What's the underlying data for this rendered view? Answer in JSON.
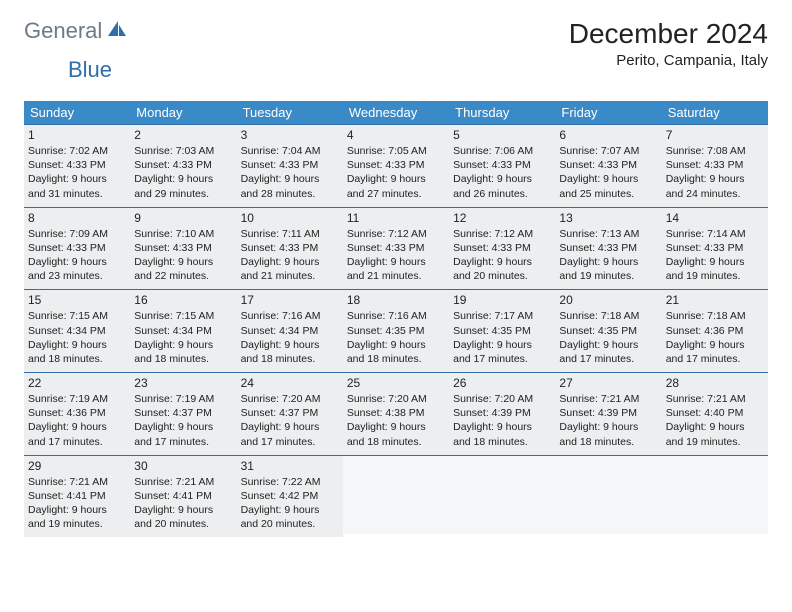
{
  "logo": {
    "text1": "General",
    "text2": "Blue"
  },
  "title": "December 2024",
  "location": "Perito, Campania, Italy",
  "colors": {
    "header_bg": "#3a8ac8",
    "header_text": "#ffffff",
    "border": "#2f6ea8",
    "cell_bg": "#eceeef",
    "empty_bg": "#f5f6f7",
    "logo_gray": "#6b7b8a",
    "logo_blue": "#2f6ea8"
  },
  "day_headers": [
    "Sunday",
    "Monday",
    "Tuesday",
    "Wednesday",
    "Thursday",
    "Friday",
    "Saturday"
  ],
  "weeks": [
    [
      {
        "num": "1",
        "sunrise": "Sunrise: 7:02 AM",
        "sunset": "Sunset: 4:33 PM",
        "dl1": "Daylight: 9 hours",
        "dl2": "and 31 minutes."
      },
      {
        "num": "2",
        "sunrise": "Sunrise: 7:03 AM",
        "sunset": "Sunset: 4:33 PM",
        "dl1": "Daylight: 9 hours",
        "dl2": "and 29 minutes."
      },
      {
        "num": "3",
        "sunrise": "Sunrise: 7:04 AM",
        "sunset": "Sunset: 4:33 PM",
        "dl1": "Daylight: 9 hours",
        "dl2": "and 28 minutes."
      },
      {
        "num": "4",
        "sunrise": "Sunrise: 7:05 AM",
        "sunset": "Sunset: 4:33 PM",
        "dl1": "Daylight: 9 hours",
        "dl2": "and 27 minutes."
      },
      {
        "num": "5",
        "sunrise": "Sunrise: 7:06 AM",
        "sunset": "Sunset: 4:33 PM",
        "dl1": "Daylight: 9 hours",
        "dl2": "and 26 minutes."
      },
      {
        "num": "6",
        "sunrise": "Sunrise: 7:07 AM",
        "sunset": "Sunset: 4:33 PM",
        "dl1": "Daylight: 9 hours",
        "dl2": "and 25 minutes."
      },
      {
        "num": "7",
        "sunrise": "Sunrise: 7:08 AM",
        "sunset": "Sunset: 4:33 PM",
        "dl1": "Daylight: 9 hours",
        "dl2": "and 24 minutes."
      }
    ],
    [
      {
        "num": "8",
        "sunrise": "Sunrise: 7:09 AM",
        "sunset": "Sunset: 4:33 PM",
        "dl1": "Daylight: 9 hours",
        "dl2": "and 23 minutes."
      },
      {
        "num": "9",
        "sunrise": "Sunrise: 7:10 AM",
        "sunset": "Sunset: 4:33 PM",
        "dl1": "Daylight: 9 hours",
        "dl2": "and 22 minutes."
      },
      {
        "num": "10",
        "sunrise": "Sunrise: 7:11 AM",
        "sunset": "Sunset: 4:33 PM",
        "dl1": "Daylight: 9 hours",
        "dl2": "and 21 minutes."
      },
      {
        "num": "11",
        "sunrise": "Sunrise: 7:12 AM",
        "sunset": "Sunset: 4:33 PM",
        "dl1": "Daylight: 9 hours",
        "dl2": "and 21 minutes."
      },
      {
        "num": "12",
        "sunrise": "Sunrise: 7:12 AM",
        "sunset": "Sunset: 4:33 PM",
        "dl1": "Daylight: 9 hours",
        "dl2": "and 20 minutes."
      },
      {
        "num": "13",
        "sunrise": "Sunrise: 7:13 AM",
        "sunset": "Sunset: 4:33 PM",
        "dl1": "Daylight: 9 hours",
        "dl2": "and 19 minutes."
      },
      {
        "num": "14",
        "sunrise": "Sunrise: 7:14 AM",
        "sunset": "Sunset: 4:33 PM",
        "dl1": "Daylight: 9 hours",
        "dl2": "and 19 minutes."
      }
    ],
    [
      {
        "num": "15",
        "sunrise": "Sunrise: 7:15 AM",
        "sunset": "Sunset: 4:34 PM",
        "dl1": "Daylight: 9 hours",
        "dl2": "and 18 minutes."
      },
      {
        "num": "16",
        "sunrise": "Sunrise: 7:15 AM",
        "sunset": "Sunset: 4:34 PM",
        "dl1": "Daylight: 9 hours",
        "dl2": "and 18 minutes."
      },
      {
        "num": "17",
        "sunrise": "Sunrise: 7:16 AM",
        "sunset": "Sunset: 4:34 PM",
        "dl1": "Daylight: 9 hours",
        "dl2": "and 18 minutes."
      },
      {
        "num": "18",
        "sunrise": "Sunrise: 7:16 AM",
        "sunset": "Sunset: 4:35 PM",
        "dl1": "Daylight: 9 hours",
        "dl2": "and 18 minutes."
      },
      {
        "num": "19",
        "sunrise": "Sunrise: 7:17 AM",
        "sunset": "Sunset: 4:35 PM",
        "dl1": "Daylight: 9 hours",
        "dl2": "and 17 minutes."
      },
      {
        "num": "20",
        "sunrise": "Sunrise: 7:18 AM",
        "sunset": "Sunset: 4:35 PM",
        "dl1": "Daylight: 9 hours",
        "dl2": "and 17 minutes."
      },
      {
        "num": "21",
        "sunrise": "Sunrise: 7:18 AM",
        "sunset": "Sunset: 4:36 PM",
        "dl1": "Daylight: 9 hours",
        "dl2": "and 17 minutes."
      }
    ],
    [
      {
        "num": "22",
        "sunrise": "Sunrise: 7:19 AM",
        "sunset": "Sunset: 4:36 PM",
        "dl1": "Daylight: 9 hours",
        "dl2": "and 17 minutes."
      },
      {
        "num": "23",
        "sunrise": "Sunrise: 7:19 AM",
        "sunset": "Sunset: 4:37 PM",
        "dl1": "Daylight: 9 hours",
        "dl2": "and 17 minutes."
      },
      {
        "num": "24",
        "sunrise": "Sunrise: 7:20 AM",
        "sunset": "Sunset: 4:37 PM",
        "dl1": "Daylight: 9 hours",
        "dl2": "and 17 minutes."
      },
      {
        "num": "25",
        "sunrise": "Sunrise: 7:20 AM",
        "sunset": "Sunset: 4:38 PM",
        "dl1": "Daylight: 9 hours",
        "dl2": "and 18 minutes."
      },
      {
        "num": "26",
        "sunrise": "Sunrise: 7:20 AM",
        "sunset": "Sunset: 4:39 PM",
        "dl1": "Daylight: 9 hours",
        "dl2": "and 18 minutes."
      },
      {
        "num": "27",
        "sunrise": "Sunrise: 7:21 AM",
        "sunset": "Sunset: 4:39 PM",
        "dl1": "Daylight: 9 hours",
        "dl2": "and 18 minutes."
      },
      {
        "num": "28",
        "sunrise": "Sunrise: 7:21 AM",
        "sunset": "Sunset: 4:40 PM",
        "dl1": "Daylight: 9 hours",
        "dl2": "and 19 minutes."
      }
    ],
    [
      {
        "num": "29",
        "sunrise": "Sunrise: 7:21 AM",
        "sunset": "Sunset: 4:41 PM",
        "dl1": "Daylight: 9 hours",
        "dl2": "and 19 minutes."
      },
      {
        "num": "30",
        "sunrise": "Sunrise: 7:21 AM",
        "sunset": "Sunset: 4:41 PM",
        "dl1": "Daylight: 9 hours",
        "dl2": "and 20 minutes."
      },
      {
        "num": "31",
        "sunrise": "Sunrise: 7:22 AM",
        "sunset": "Sunset: 4:42 PM",
        "dl1": "Daylight: 9 hours",
        "dl2": "and 20 minutes."
      },
      null,
      null,
      null,
      null
    ]
  ]
}
